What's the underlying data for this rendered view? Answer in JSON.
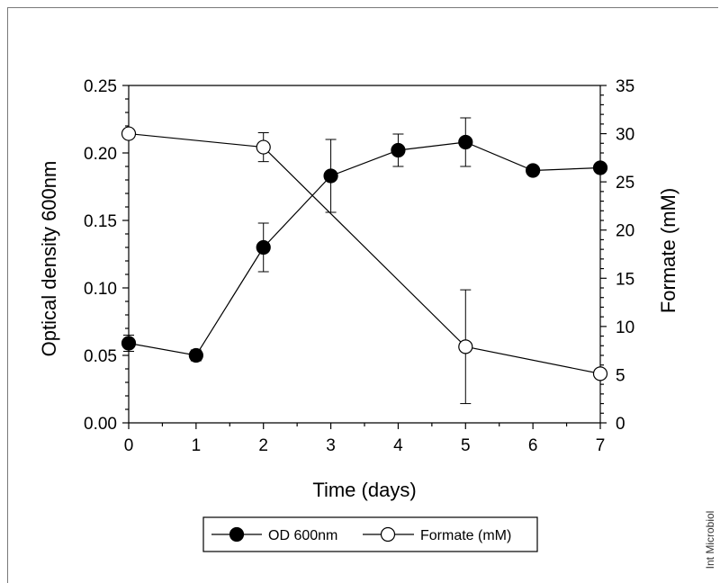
{
  "chart_data": {
    "type": "line",
    "xlabel": "Time (days)",
    "ylabel_left": "Optical density 600nm",
    "ylabel_right": "Formate (mM)",
    "xlim": [
      0,
      7
    ],
    "ylim_left": [
      0,
      0.25
    ],
    "ylim_right": [
      0,
      35
    ],
    "x_ticks": [
      "0",
      "1",
      "2",
      "3",
      "4",
      "5",
      "6",
      "7"
    ],
    "y_left_ticks": [
      "0.00",
      "0.05",
      "0.10",
      "0.15",
      "0.20",
      "0.25"
    ],
    "y_right_ticks": [
      "0",
      "5",
      "10",
      "15",
      "20",
      "25",
      "30",
      "35"
    ],
    "series": [
      {
        "name": "OD 600nm",
        "axis": "left",
        "marker": "filled-circle",
        "x": [
          0,
          1,
          2,
          3,
          4,
          5,
          6,
          7
        ],
        "y": [
          0.059,
          0.05,
          0.13,
          0.183,
          0.202,
          0.208,
          0.187,
          0.189
        ],
        "error": [
          0.006,
          0.004,
          0.018,
          0.027,
          0.012,
          0.018,
          0,
          0
        ]
      },
      {
        "name": "Formate (mM)",
        "axis": "right",
        "marker": "open-circle",
        "x": [
          0,
          2,
          5,
          7
        ],
        "y": [
          30.0,
          28.6,
          7.9,
          5.1
        ],
        "error": [
          0,
          1.5,
          5.9,
          0
        ]
      }
    ],
    "legend": {
      "position": "bottom-center",
      "entries": [
        "OD 600nm",
        "Formate (mM)"
      ]
    },
    "grid": false
  },
  "credit": "Int Microbiol",
  "colors": {
    "line": "#000000",
    "open_marker_fill": "#ffffff",
    "frame": "#7a7a7a"
  }
}
